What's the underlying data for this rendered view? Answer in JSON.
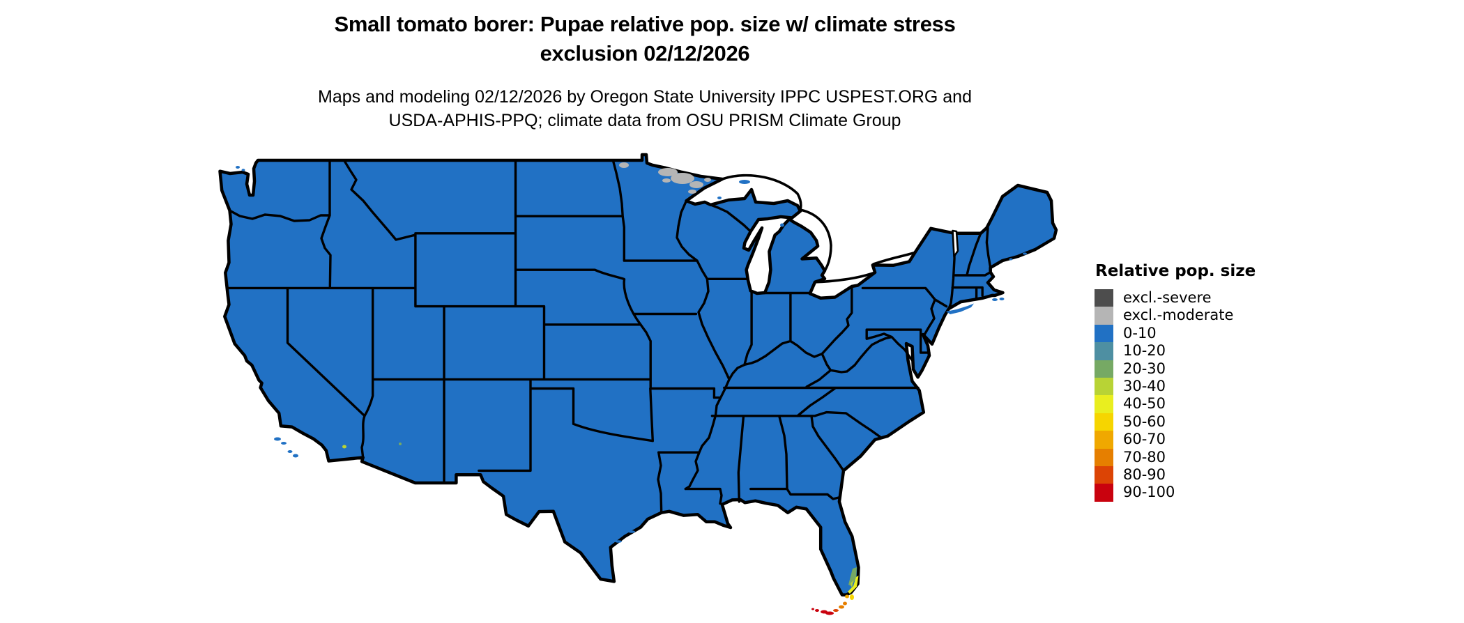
{
  "title": {
    "line1": "Small tomato borer: Pupae relative pop. size w/ climate stress",
    "line2": "exclusion 02/12/2026"
  },
  "subtitle": {
    "line1": "Maps and modeling 02/12/2026 by Oregon State University IPPC USPEST.ORG and",
    "line2": "USDA-APHIS-PPQ; climate data from OSU PRISM Climate Group"
  },
  "legend": {
    "title": "Relative pop. size",
    "items": [
      {
        "label": "excl.-severe",
        "color": "#4d4d4d"
      },
      {
        "label": "excl.-moderate",
        "color": "#b5b5b5"
      },
      {
        "label": "0-10",
        "color": "#2171c4"
      },
      {
        "label": "10-20",
        "color": "#4e8fa2"
      },
      {
        "label": "20-30",
        "color": "#76a964"
      },
      {
        "label": "30-40",
        "color": "#b8d335"
      },
      {
        "label": "40-50",
        "color": "#e9ee1f"
      },
      {
        "label": "50-60",
        "color": "#f6d500"
      },
      {
        "label": "60-70",
        "color": "#f0a800"
      },
      {
        "label": "70-80",
        "color": "#e67f00"
      },
      {
        "label": "80-90",
        "color": "#dc4405"
      },
      {
        "label": "90-100",
        "color": "#c9020e"
      }
    ]
  },
  "map": {
    "area": "Contiguous United States with state borders",
    "dominant_class": "0-10",
    "border_color": "#000000",
    "water_color": "#ffffff",
    "overlays": [
      {
        "location": "northern Minnesota border / Boundary Waters",
        "value": "excl.-moderate"
      },
      {
        "location": "southeast Florida coast",
        "value": "20-30 through 60-70"
      },
      {
        "location": "Florida Keys",
        "value": "70-80 through 90-100"
      },
      {
        "location": "Salton Sea area, southern California",
        "value": "30-40"
      },
      {
        "location": "central Arizona spot",
        "value": "20-30"
      }
    ]
  }
}
